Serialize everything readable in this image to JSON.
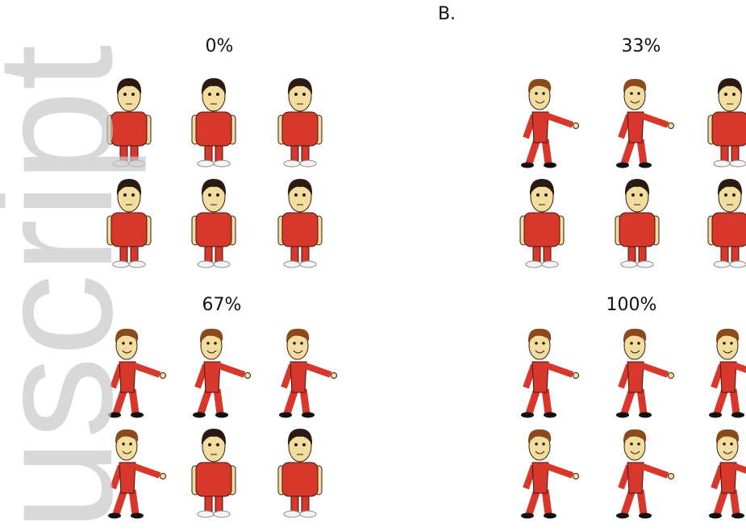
{
  "panel_label": "B.",
  "watermark": "uscript",
  "panels": [
    {
      "label": "0%"
    },
    {
      "label": "33%"
    },
    {
      "label": "67%"
    },
    {
      "label": "100%"
    }
  ]
}
